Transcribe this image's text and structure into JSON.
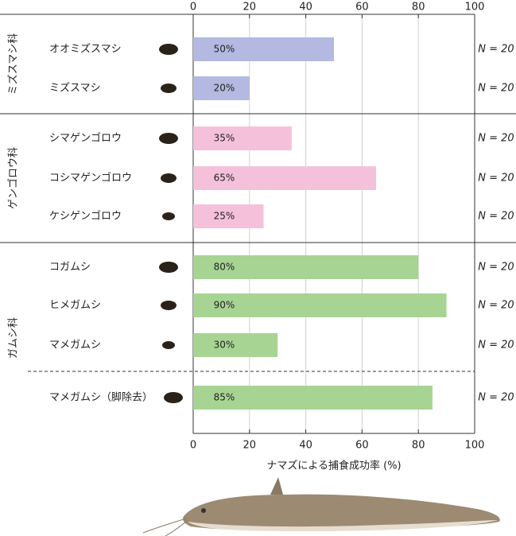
{
  "chart_data": {
    "type": "bar",
    "x_label": "ナマズによる捕食成功率 (%)",
    "xlim": [
      0,
      100
    ],
    "xticks": [
      0,
      20,
      40,
      60,
      80,
      100
    ],
    "grid": true,
    "groups": [
      {
        "name": "ミズスマシ科",
        "color": "#b3b9e0",
        "categories": [
          "オオミズスマシ",
          "ミズスマシ"
        ],
        "values": [
          50,
          20
        ],
        "value_labels": [
          "50%",
          "20%"
        ],
        "n_labels": [
          "N = 20",
          "N = 20"
        ]
      },
      {
        "name": "ゲンゴロウ科",
        "color": "#f5c1da",
        "categories": [
          "シマゲンゴロウ",
          "コシマゲンゴロウ",
          "ケシゲンゴロウ"
        ],
        "values": [
          35,
          65,
          25
        ],
        "value_labels": [
          "35%",
          "65%",
          "25%"
        ],
        "n_labels": [
          "N = 20",
          "N = 20",
          "N = 20"
        ]
      },
      {
        "name": "ガムシ科",
        "color": "#a7d493",
        "categories": [
          "コガムシ",
          "ヒメガムシ",
          "マメガムシ",
          "マメガムシ（脚除去）"
        ],
        "values": [
          80,
          90,
          30,
          85
        ],
        "value_labels": [
          "80%",
          "90%",
          "30%",
          "85%"
        ],
        "n_labels": [
          "N = 20",
          "N = 20",
          "N = 20",
          "N = 20"
        ]
      }
    ]
  }
}
